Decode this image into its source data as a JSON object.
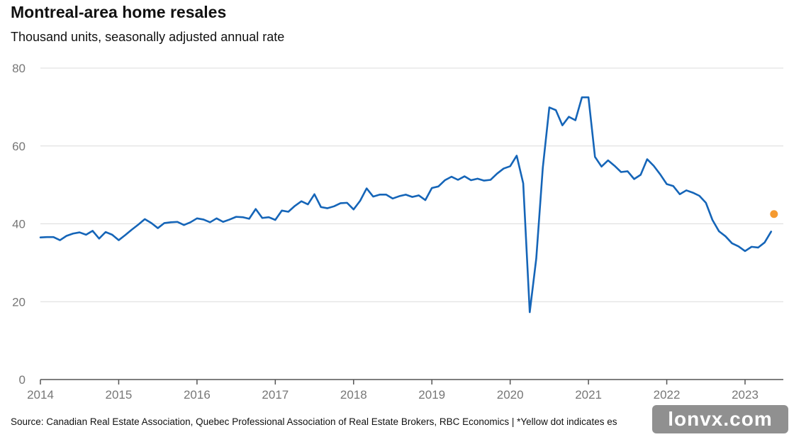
{
  "title": "Montreal-area home resales",
  "subtitle": "Thousand units, seasonally adjusted annual rate",
  "source": "Source: Canadian Real Estate Association, Quebec Professional Association of Real Estate Brokers, RBC Economics | *Yellow dot indicates es",
  "watermark": "lonvx.com",
  "chart_data": {
    "type": "line",
    "title": "Montreal-area home resales",
    "subtitle": "Thousand units, seasonally adjusted annual rate",
    "xlabel": "",
    "ylabel": "",
    "ylim": [
      0,
      80
    ],
    "yticks": [
      0,
      20,
      40,
      60,
      80
    ],
    "xticks": [
      "2014",
      "2015",
      "2016",
      "2017",
      "2018",
      "2019",
      "2020",
      "2021",
      "2022",
      "2023"
    ],
    "xstart": "2014-01",
    "grid": true,
    "colors": {
      "line": "#1565b8",
      "estimate": "#f59a30",
      "grid": "#dcdcdc",
      "axis": "#555555"
    },
    "series": [
      {
        "values": [
          36.5,
          36.6,
          36.6,
          35.8,
          36.9,
          37.5,
          37.8,
          37.2,
          38.2,
          36.2,
          37.9,
          37.2,
          35.8,
          37.1,
          38.5,
          39.8,
          41.2,
          40.2,
          38.9,
          40.2,
          40.4,
          40.5,
          39.7,
          40.4,
          41.4,
          41.1,
          40.4,
          41.4,
          40.5,
          41.1,
          41.8,
          41.7,
          41.3,
          43.8,
          41.5,
          41.7,
          41.0,
          43.4,
          43.1,
          44.6,
          45.8,
          45.0,
          47.6,
          44.3,
          44.0,
          44.5,
          45.3,
          45.4,
          43.7,
          45.9,
          49.1,
          47.0,
          47.5,
          47.5,
          46.5,
          47.1,
          47.5,
          46.9,
          47.3,
          46.1,
          49.2,
          49.6,
          51.2,
          52.1,
          51.3,
          52.2,
          51.2,
          51.6,
          51.1,
          51.3,
          52.9,
          54.2,
          54.8,
          57.5,
          50.4,
          17.3,
          31.1,
          54.4,
          69.9,
          69.2,
          65.3,
          67.5,
          66.6,
          72.5,
          72.5,
          57.2,
          54.7,
          56.3,
          54.9,
          53.3,
          53.5,
          51.5,
          52.6,
          56.6,
          54.9,
          52.7,
          50.2,
          49.7,
          47.6,
          48.6,
          48.0,
          47.2,
          45.4,
          41.0,
          38.1,
          36.8,
          35.0,
          34.2,
          33.0,
          34.1,
          33.9,
          35.2,
          38.0
        ]
      }
    ],
    "estimate": {
      "date": "2023-05",
      "value": 42.5
    }
  }
}
